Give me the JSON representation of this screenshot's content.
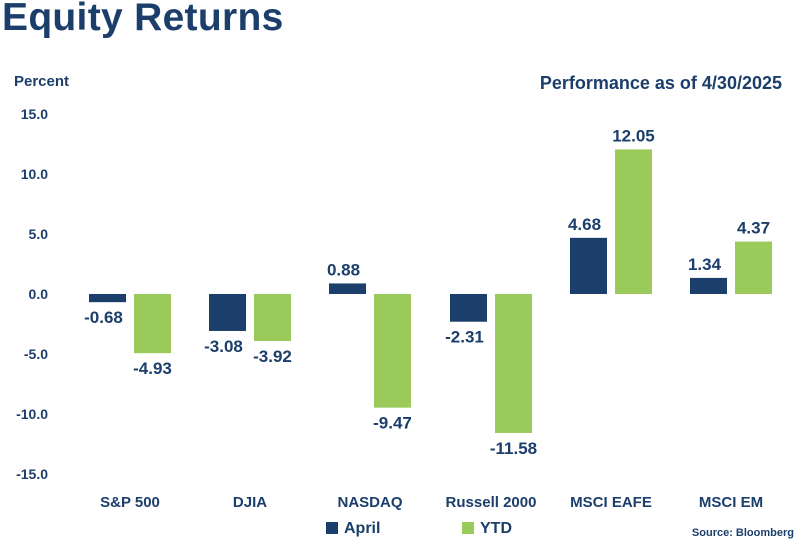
{
  "chart_data": {
    "type": "bar",
    "title": "Equity Returns",
    "subtitle": "Performance as of 4/30/2025",
    "ylabel": "Percent",
    "xlabel": "",
    "source": "Source: Bloomberg",
    "ylim": [
      -15,
      15
    ],
    "yticks": [
      15,
      10,
      5,
      0,
      -5,
      -10,
      -15
    ],
    "ytick_labels": [
      "15.0",
      "10.0",
      "5.0",
      "0.0",
      "-5.0",
      "-10.0",
      "-15.0"
    ],
    "categories": [
      "S&P 500",
      "DJIA",
      "NASDAQ",
      "Russell 2000",
      "MSCI EAFE",
      "MSCI EM"
    ],
    "series": [
      {
        "name": "April",
        "color": "#1b3e6b",
        "values": [
          -0.68,
          -3.08,
          0.88,
          -2.31,
          4.68,
          1.34
        ]
      },
      {
        "name": "YTD",
        "color": "#9acb5a",
        "values": [
          -4.93,
          -3.92,
          -9.47,
          -11.58,
          12.05,
          4.37
        ]
      }
    ],
    "legend": "bottom-center",
    "grid": false
  }
}
